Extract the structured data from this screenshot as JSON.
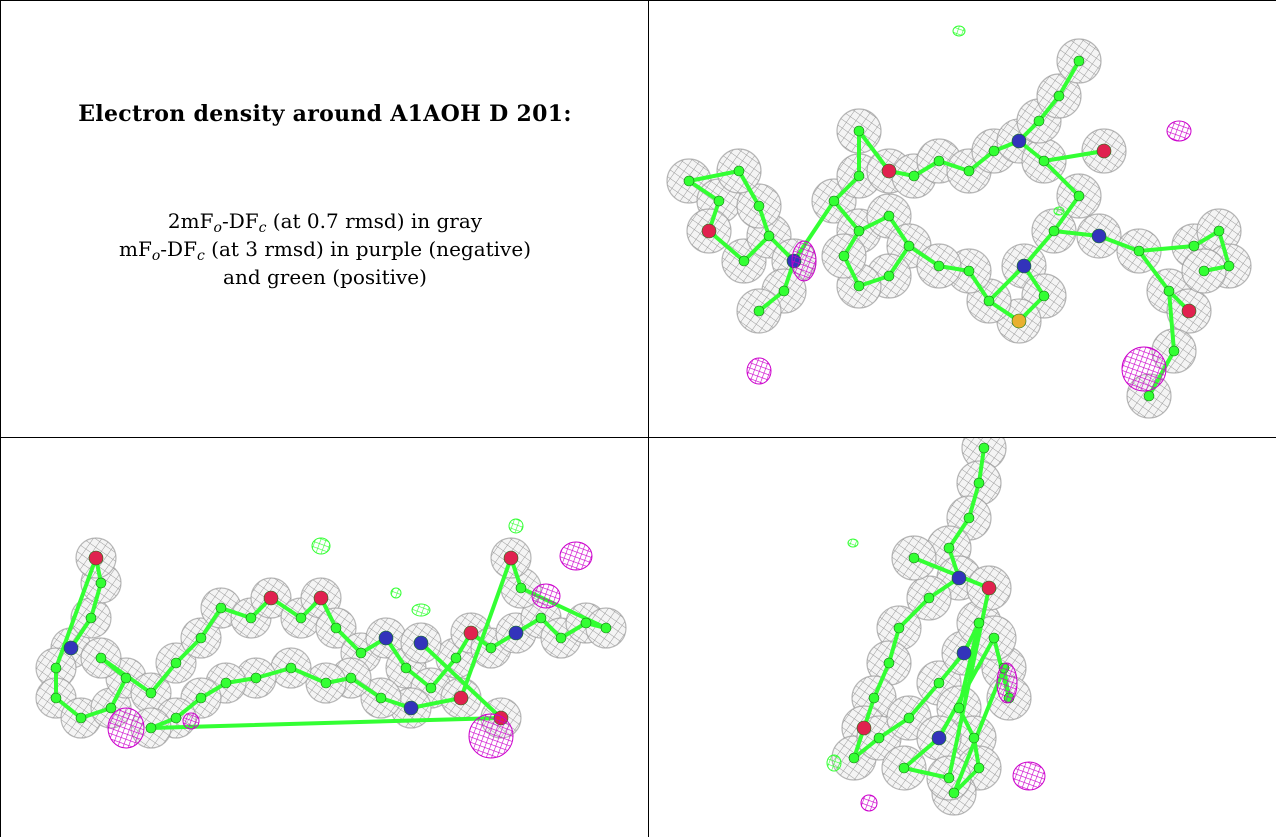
{
  "heading": "Electron density around A1AOH D 201:",
  "legend": {
    "line1": {
      "prefix": "2mF",
      "sub1": "o",
      "mid": "-DF",
      "sub2": "c",
      "suffix": " (at 0.7 rmsd) in gray"
    },
    "line2": {
      "prefix": "mF",
      "sub1": "o",
      "mid": "-DF",
      "sub2": "c",
      "suffix": " (at 3 rmsd) in purple (negative)"
    },
    "line3": "and green (positive)"
  },
  "colors": {
    "mesh": "#9a9a9a",
    "carbon": "#33ff33",
    "nitrogen": "#3333bb",
    "oxygen": "#e0224f",
    "sulfur": "#e8b030",
    "negative": "#cc00cc",
    "positive": "#33ff33"
  }
}
